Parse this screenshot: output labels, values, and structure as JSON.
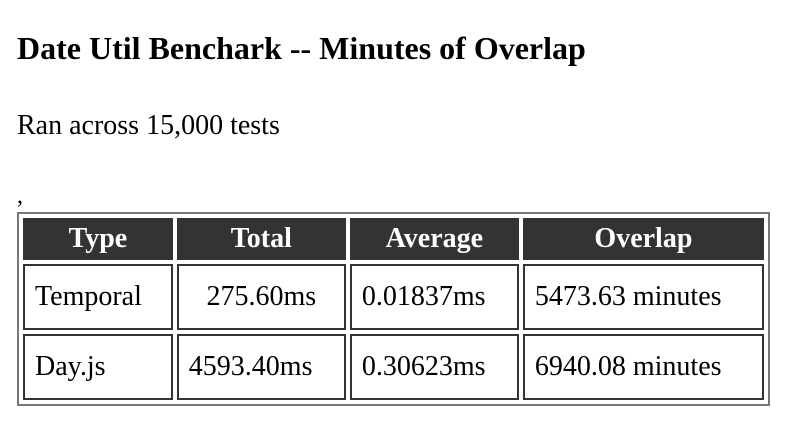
{
  "header": {
    "title": "Date Util Benchark -- Minutes of Overlap",
    "subtitle": "Ran across 15,000 tests",
    "separator": ","
  },
  "table": {
    "columns": [
      "Type",
      "Total",
      "Average",
      "Overlap"
    ],
    "rows": [
      [
        "Temporal",
        "275.60ms",
        "0.01837ms",
        "5473.63 minutes"
      ],
      [
        "Day.js",
        "4593.40ms",
        "0.30623ms",
        "6940.08 minutes"
      ]
    ]
  }
}
